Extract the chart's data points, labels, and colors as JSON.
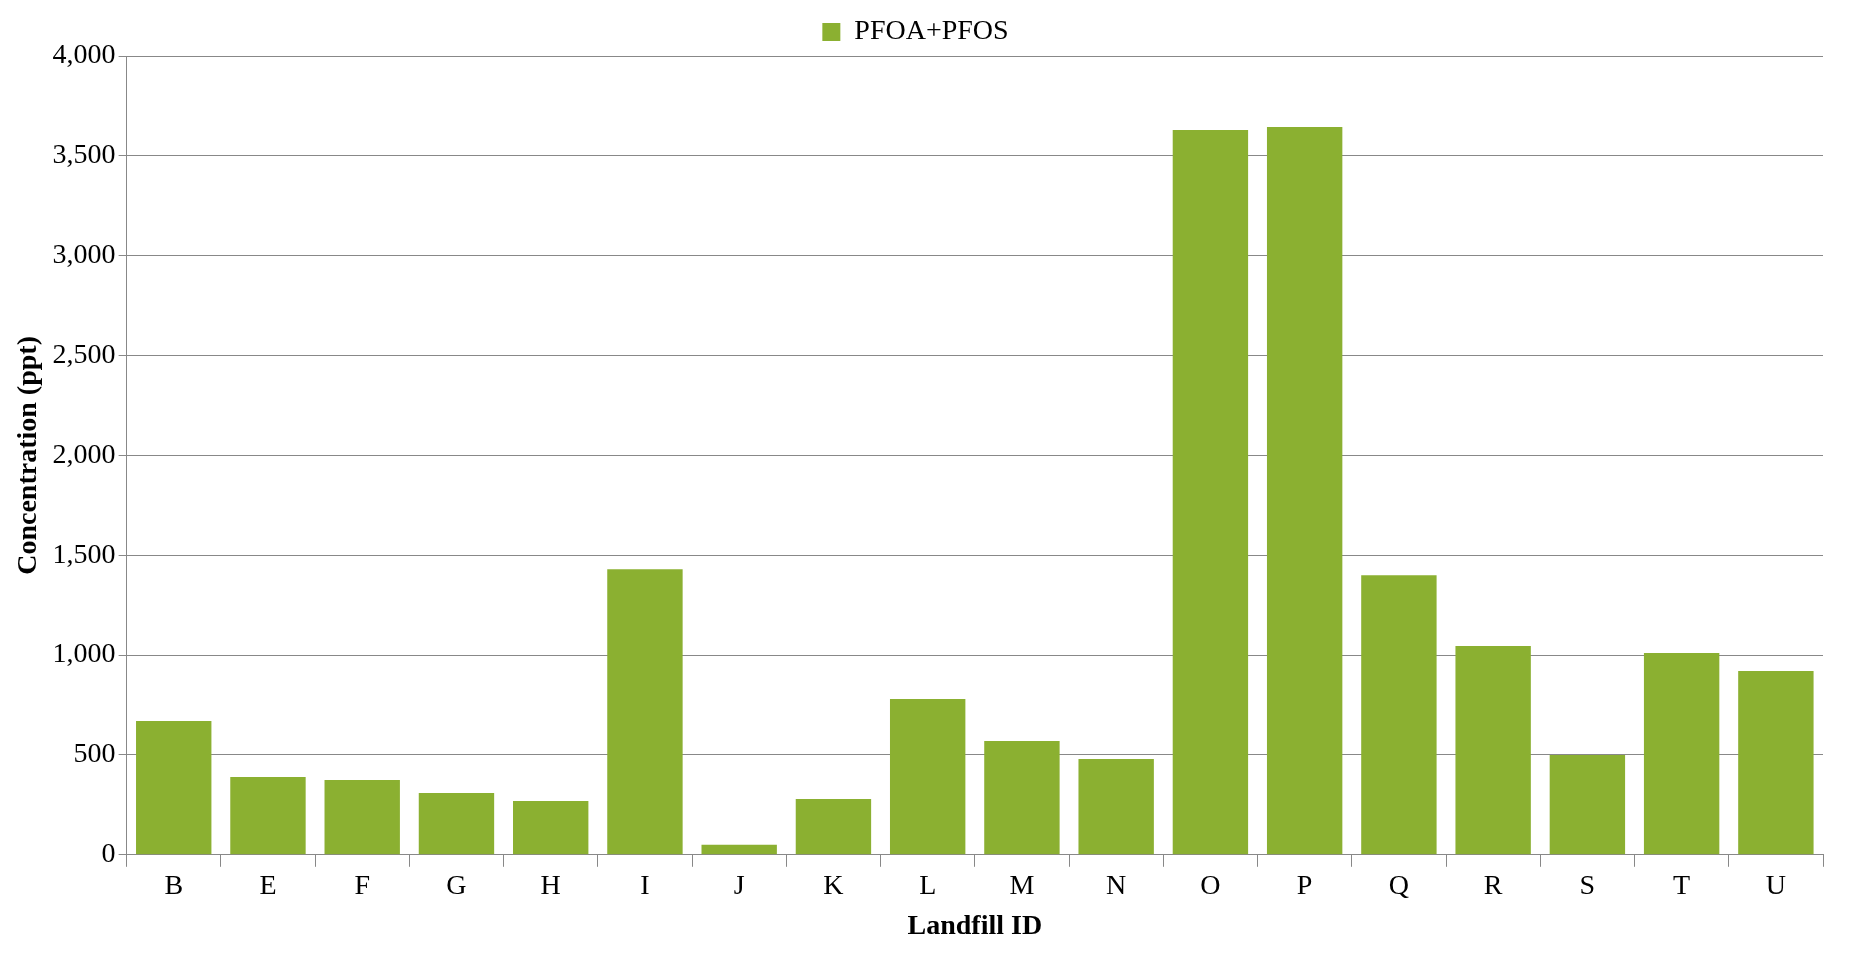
{
  "chart_data": {
    "type": "bar",
    "xlabel": "Landfill ID",
    "ylabel": "Concentration (ppt)",
    "categories": [
      "B",
      "E",
      "F",
      "G",
      "H",
      "I",
      "J",
      "K",
      "L",
      "M",
      "N",
      "O",
      "P",
      "Q",
      "R",
      "S",
      "T",
      "U"
    ],
    "series": [
      {
        "name": "PFOA+PFOS",
        "color": "#8bb031",
        "values": [
          670,
          390,
          375,
          310,
          270,
          1430,
          50,
          280,
          780,
          570,
          480,
          3630,
          3645,
          1400,
          1045,
          500,
          1010,
          920
        ]
      }
    ],
    "ylim": [
      0,
      4000
    ],
    "yticks": [
      0,
      500,
      {
        "value": 1000,
        "label": "1,000"
      },
      {
        "value": 1500,
        "label": "1,500"
      },
      {
        "value": 2000,
        "label": "2,000"
      },
      {
        "value": 2500,
        "label": "2,500"
      },
      {
        "value": 3000,
        "label": "3,000"
      },
      {
        "value": 3500,
        "label": "3,500"
      },
      {
        "value": 4000,
        "label": "4,000"
      }
    ],
    "grid": "y",
    "legend": "top"
  }
}
